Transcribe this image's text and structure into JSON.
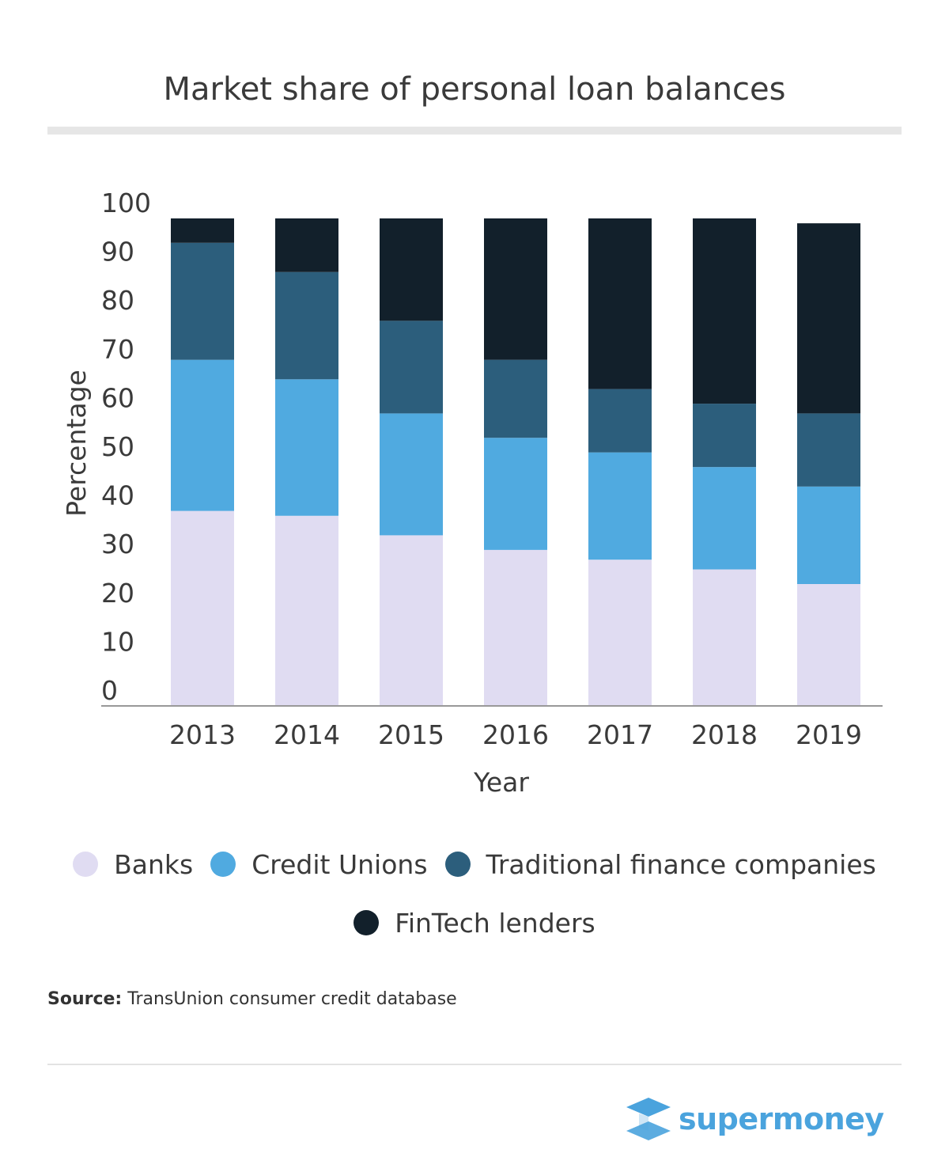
{
  "chart_data": {
    "type": "bar",
    "stacked": true,
    "title": "Market share of personal loan balances",
    "xlabel": "Year",
    "ylabel": "Percentage",
    "ylim": [
      0,
      100
    ],
    "yticks": [
      0,
      10,
      20,
      30,
      40,
      50,
      60,
      70,
      80,
      90,
      100
    ],
    "categories": [
      "2013",
      "2014",
      "2015",
      "2016",
      "2017",
      "2018",
      "2019"
    ],
    "grid": false,
    "legend_position": "bottom",
    "series": [
      {
        "name": "Banks",
        "color": "#e0dcf2",
        "values": [
          40,
          39,
          35,
          32,
          30,
          28,
          25
        ]
      },
      {
        "name": "Credit Unions",
        "color": "#50aae0",
        "values": [
          31,
          28,
          25,
          23,
          22,
          21,
          20
        ]
      },
      {
        "name": "Traditional finance companies",
        "color": "#2c5e7c",
        "values": [
          24,
          22,
          19,
          16,
          13,
          13,
          15
        ]
      },
      {
        "name": "FinTech lenders",
        "color": "#12202b",
        "values": [
          5,
          11,
          21,
          29,
          35,
          38,
          39
        ]
      }
    ]
  },
  "source": {
    "label": "Source:",
    "text": "TransUnion  consumer credit database"
  },
  "logo": {
    "text": "supermoney",
    "color": "#4aa3dd"
  }
}
